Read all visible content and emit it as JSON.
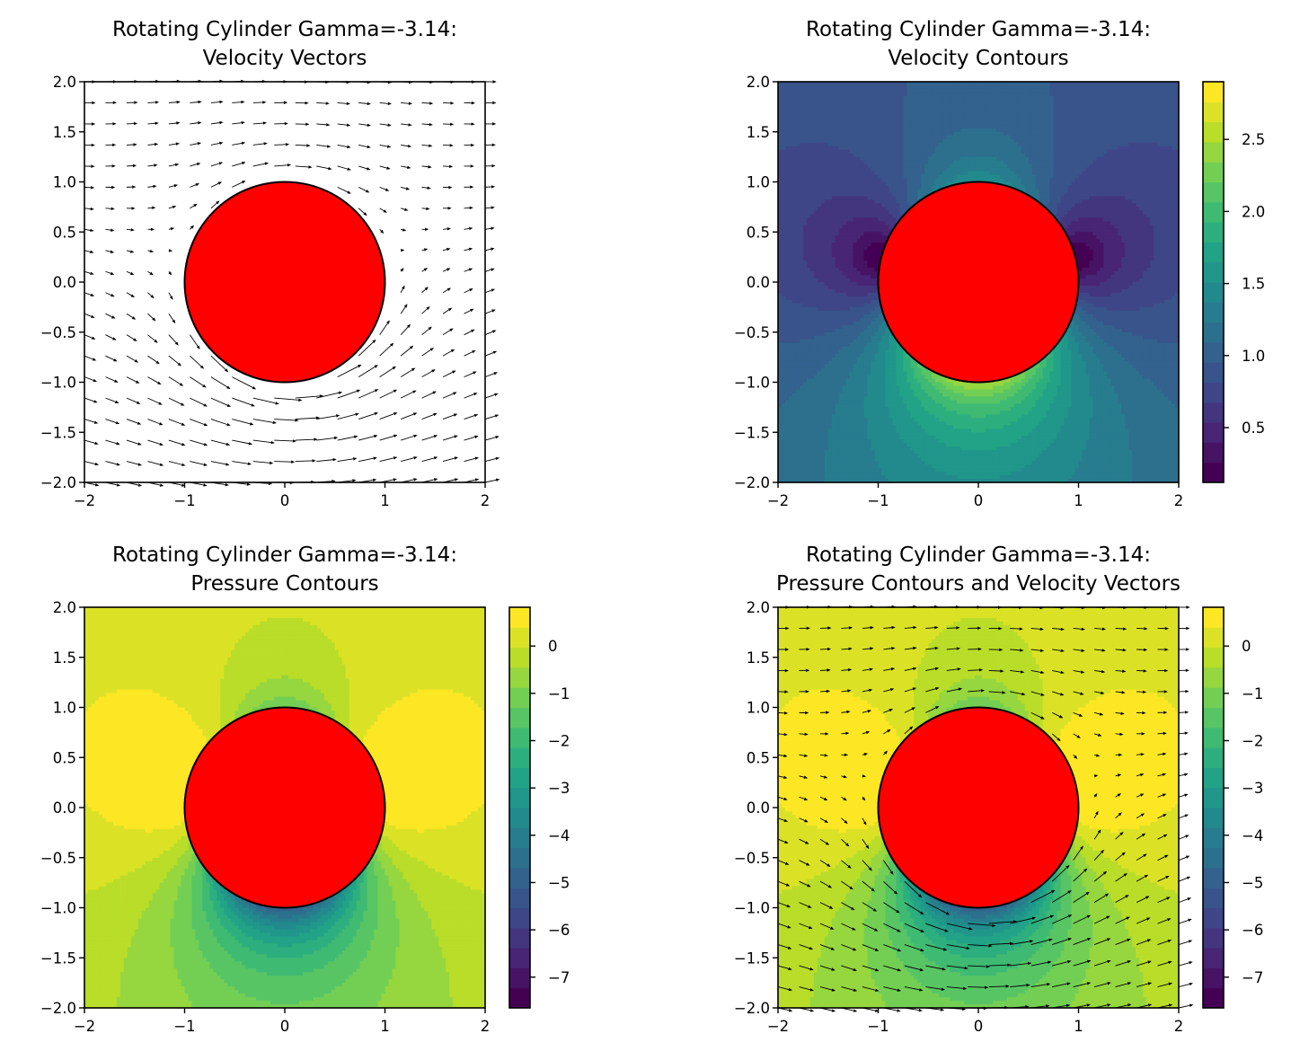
{
  "figure": {
    "panels": [
      {
        "title_line1": "Rotating Cylinder Gamma=-3.14:",
        "title_line2": "Velocity Vectors",
        "field": "none",
        "arrows": true
      },
      {
        "title_line1": "Rotating Cylinder Gamma=-3.14:",
        "title_line2": "Velocity Contours",
        "field": "velocity",
        "arrows": false
      },
      {
        "title_line1": "Rotating Cylinder Gamma=-3.14:",
        "title_line2": "Pressure Contours",
        "field": "pressure",
        "arrows": false
      },
      {
        "title_line1": "Rotating Cylinder Gamma=-3.14:",
        "title_line2": "Pressure Contours and Velocity Vectors",
        "field": "pressure",
        "arrows": true
      }
    ]
  },
  "chart_data": {
    "type": "contour",
    "gamma": -3.14,
    "freestream_velocity": 1,
    "cylinder": {
      "center": [
        0,
        0
      ],
      "radius": 1,
      "color": "#ff0000"
    },
    "xlim": [
      -2,
      2
    ],
    "ylim": [
      -2,
      2
    ],
    "xticks": [
      -2,
      -1,
      0,
      1,
      2
    ],
    "yticks": [
      -2.0,
      -1.5,
      -1.0,
      -0.5,
      0.0,
      0.5,
      1.0,
      1.5,
      2.0
    ],
    "xtick_labels": [
      "−2",
      "−1",
      "0",
      "1",
      "2"
    ],
    "ytick_labels": [
      "−2.0",
      "−1.5",
      "−1.0",
      "−0.5",
      "0.0",
      "0.5",
      "1.0",
      "1.5",
      "2.0"
    ],
    "colormap": "viridis",
    "velocity_colorbar": {
      "range": [
        0.12,
        2.9
      ],
      "ticks": [
        0.5,
        1.0,
        1.5,
        2.0,
        2.5
      ],
      "tick_labels": [
        "0.5",
        "1.0",
        "1.5",
        "2.0",
        "2.5"
      ]
    },
    "pressure_colorbar": {
      "range": [
        -7.65,
        0.82
      ],
      "ticks": [
        0,
        -1,
        -2,
        -3,
        -4,
        -5,
        -6,
        -7
      ],
      "tick_labels": [
        "0",
        "−1",
        "−2",
        "−3",
        "−4",
        "−5",
        "−6",
        "−7"
      ]
    },
    "quiver_grid": {
      "x_start": -2,
      "x_end": 2,
      "y_start": -2,
      "y_end": 2,
      "n": 20
    }
  }
}
